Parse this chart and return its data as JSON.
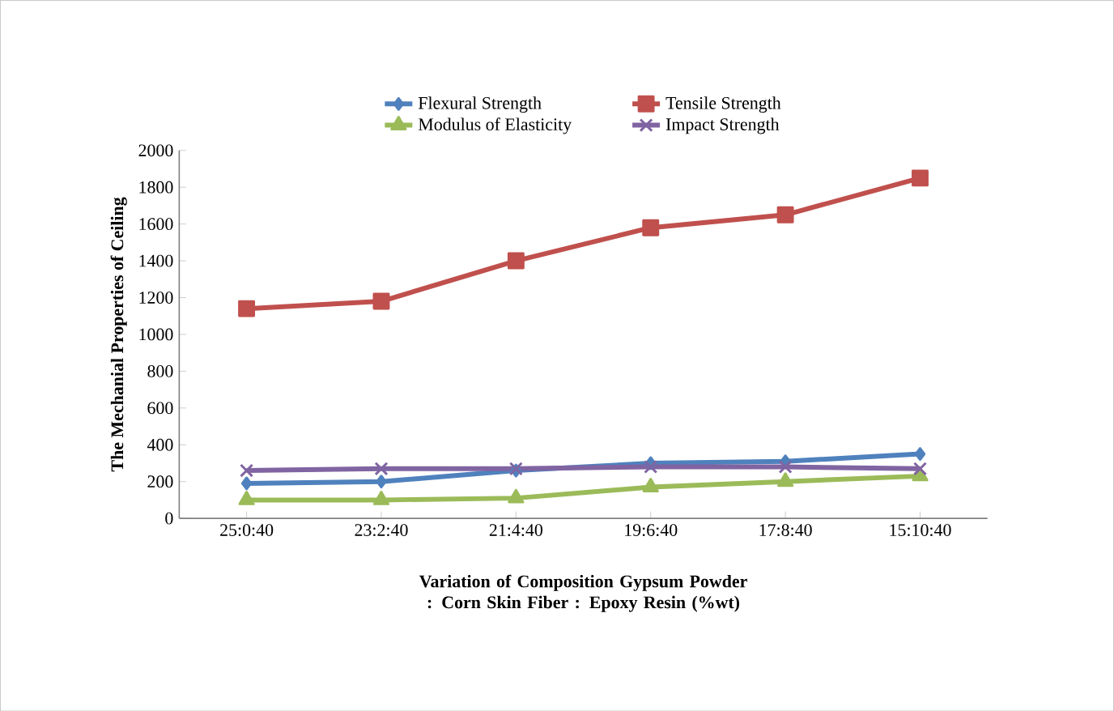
{
  "chart_data": {
    "type": "line",
    "ylabel": "The Mechanial Properties of Ceiling",
    "xlabel": "Variation of Composition Gypsum Powder : Corn Skin Fiber : Epoxy Resin (%wt)",
    "categories": [
      "25:0:40",
      "23:2:40",
      "21:4:40",
      "19:6:40",
      "17:8:40",
      "15:10:40"
    ],
    "series": [
      {
        "name": "Flexural Strength",
        "color": "#4f81bd",
        "marker": "diamond",
        "values": [
          190,
          200,
          260,
          300,
          310,
          350
        ]
      },
      {
        "name": "Tensile Strength",
        "color": "#c0504d",
        "marker": "square",
        "values": [
          1140,
          1180,
          1400,
          1580,
          1650,
          1850
        ]
      },
      {
        "name": "Modulus of Elasticity",
        "color": "#9bbb59",
        "marker": "triangle",
        "values": [
          100,
          100,
          110,
          170,
          200,
          230
        ]
      },
      {
        "name": "Impact Strength",
        "color": "#8064a2",
        "marker": "cross",
        "values": [
          260,
          270,
          270,
          280,
          280,
          270
        ]
      }
    ],
    "ylim": [
      0,
      2000
    ],
    "yticks": [
      0,
      200,
      400,
      600,
      800,
      1000,
      1200,
      1400,
      1600,
      1800,
      2000
    ],
    "legend": "top",
    "grid": false
  }
}
